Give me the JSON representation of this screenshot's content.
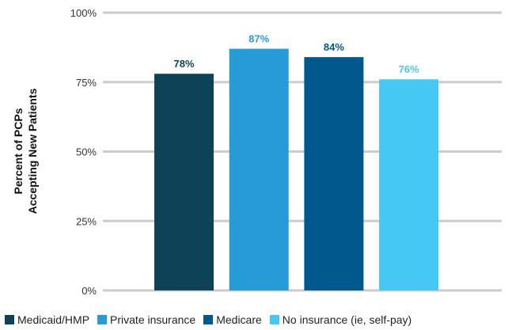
{
  "chart_data": {
    "type": "bar",
    "categories": [
      "Medicaid/HMP",
      "Private insurance",
      "Medicare",
      "No insurance (ie, self-pay)"
    ],
    "values": [
      78,
      87,
      84,
      76
    ],
    "data_labels": [
      "78%",
      "87%",
      "84%",
      "76%"
    ],
    "colors": [
      "#0e4357",
      "#279bd6",
      "#00588c",
      "#45c8f3"
    ],
    "label_colors": [
      "#0e4357",
      "#279bd6",
      "#00588c",
      "#45c8f3"
    ],
    "title": "",
    "xlabel": "",
    "ylabel": [
      "Percent of PCPs",
      "Accepting New Patients"
    ],
    "ylim": [
      0,
      100
    ],
    "yticks": [
      0,
      25,
      50,
      75,
      100
    ],
    "ytick_labels": [
      "0%",
      "25%",
      "50%",
      "75%",
      "100%"
    ],
    "grid": true,
    "gridline_color": "#cccccc",
    "legend_position": "bottom"
  }
}
